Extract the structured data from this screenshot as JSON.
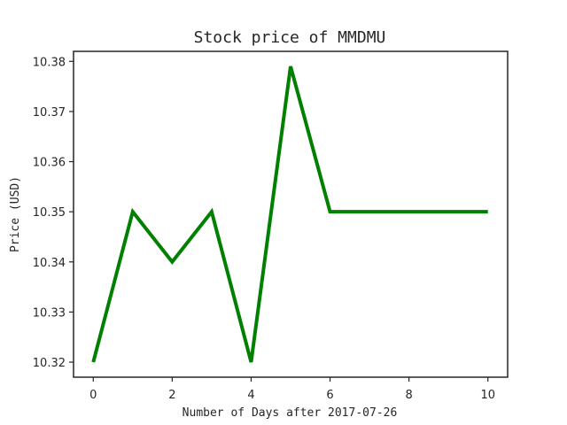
{
  "chart_data": {
    "type": "line",
    "title": "Stock price of MMDMU",
    "xlabel": "Number of Days after 2017-07-26",
    "ylabel": "Price (USD)",
    "x": [
      0,
      1,
      2,
      3,
      4,
      5,
      6,
      7,
      8,
      9,
      10
    ],
    "series": [
      {
        "color": "#008000",
        "values": [
          10.32,
          10.35,
          10.34,
          10.35,
          10.32,
          10.379,
          10.35,
          10.35,
          10.35,
          10.35,
          10.35
        ]
      }
    ],
    "xlim": [
      -0.5,
      10.5
    ],
    "ylim": [
      10.317,
      10.382
    ],
    "xticks": [
      0,
      2,
      4,
      6,
      8,
      10
    ],
    "yticks": [
      10.32,
      10.33,
      10.34,
      10.35,
      10.36,
      10.37,
      10.38
    ],
    "ytick_labels": [
      "10.32",
      "10.33",
      "10.34",
      "10.35",
      "10.36",
      "10.37",
      "10.38"
    ],
    "grid": false,
    "legend": "none"
  }
}
